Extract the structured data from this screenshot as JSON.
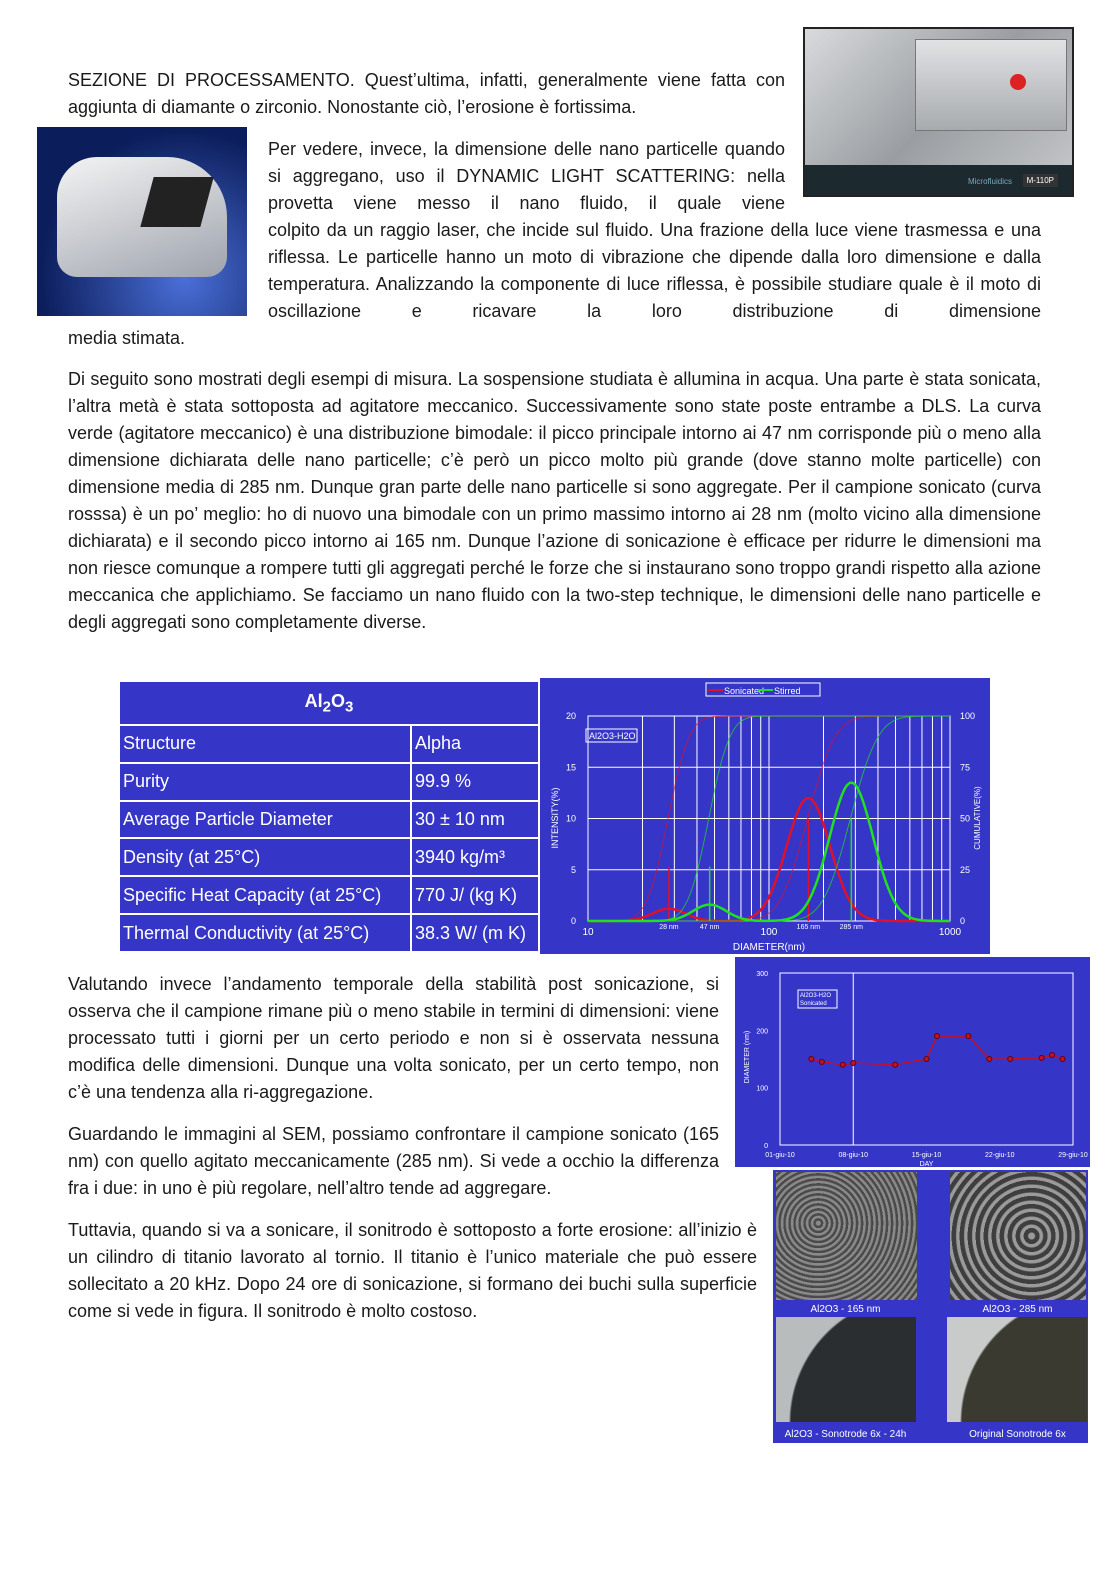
{
  "paragraphs": {
    "p1": "SEZIONE DI PROCESSAMENTO. Quest’ultima, infatti, generalmente viene fatta con aggiunta di diamante o zirconio. Nonostante ciò, l’erosione è fortissima.",
    "p2a": "Per vedere, invece, la dimensione delle nano particelle quando si aggregano, uso il DYNAMIC LIGHT SCATTERING: nella provetta viene messo il nano fluido, il quale viene",
    "p2b": "colpito da un raggio laser, che incide sul fluido. Una frazione della luce viene trasmessa e una riflessa. Le particelle hanno un moto di vibrazione che dipende dalla loro dimensione e dalla temperatura. Analizzando la componente di luce riflessa, è possibile studiare quale è il moto di oscillazione e ricavare la loro distribuzione di dimensione",
    "p2c": "media stimata.",
    "p3": "Di seguito sono mostrati degli esempi di misura. La sospensione studiata è allumina in acqua. Una parte è stata sonicata, l’altra metà è stata sottoposta ad agitatore meccanico. Successivamente sono state poste entrambe a DLS. La curva verde (agitatore meccanico) è una distribuzione bimodale: il picco principale intorno ai 47 nm corrisponde più o meno alla dimensione dichiarata delle nano particelle; c’è però un picco molto più grande (dove stanno molte particelle) con dimensione media di 285 nm. Dunque gran parte delle nano particelle si sono aggregate. Per il campione sonicato (curva rosssa) è un po’ meglio: ho di nuovo una bimodale con un primo massimo intorno ai 28 nm (molto vicino alla dimensione dichiarata) e il secondo picco intorno ai 165 nm. Dunque l’azione di sonicazione è efficace per ridurre le dimensioni ma non riesce comunque a rompere tutti gli aggregati perché le forze che si instaurano sono troppo grandi rispetto alla azione meccanica che applichiamo. Se facciamo un nano fluido con la two-step technique, le dimensioni delle nano particelle e degli aggregati sono completamente diverse.",
    "p4": "Valutando invece l’andamento temporale della stabilità post sonicazione, si osserva che il campione rimane più o meno stabile in termini di dimensioni: viene processato tutti i giorni per un certo periodo e non si è osservata nessuna modifica delle dimensioni. Dunque una volta sonicato, per un certo tempo, non c’è una tendenza alla ri-aggregazione.",
    "p5": "Guardando le immagini al SEM, possiamo confrontare il campione sonicato (165 nm) con quello agitato meccanicamente (285 nm). Si vede a occhio la differenza fra i due: in uno è più regolare, nell’altro tende ad aggregare.",
    "p6": "Tuttavia, quando si va a sonicare, il sonitrodo è sottoposto a forte erosione: all’inizio è un cilindro di titanio lavorato al tornio. Il titanio è l’unico materiale che può essere sollecitato a 20 kHz. Dopo 24 ore di sonicazione, si formano dei buchi sulla superficie come si vede in figura. Il sonitrodo è molto costoso."
  },
  "machine_photo": {
    "brand": "Microfluidics",
    "model": "M-110P"
  },
  "table": {
    "title": "Al2O3",
    "rows": [
      [
        "Structure",
        "Alpha"
      ],
      [
        "Purity",
        "99.9 %"
      ],
      [
        "Average Particle Diameter",
        "30 ± 10 nm"
      ],
      [
        "Density (at 25°C)",
        "3940 kg/m³"
      ],
      [
        "Specific Heat Capacity (at 25°C)",
        "770 J/ (kg K)"
      ],
      [
        "Thermal Conductivity (at 25°C)",
        "38.3 W/ (m K)"
      ]
    ]
  },
  "chart_data": [
    {
      "type": "line",
      "xscale": "log",
      "xlim": [
        10,
        1000
      ],
      "ylim": [
        0,
        20
      ],
      "y2lim": [
        0,
        100
      ],
      "xlabel": "DIAMETER(nm)",
      "ylabel": "INTENSITY(%)",
      "y2label": "CUMULATIVE(%)",
      "xticks": [
        "10",
        "100",
        "1000"
      ],
      "yticks": [
        "0",
        "5",
        "10",
        "15",
        "20"
      ],
      "y2ticks": [
        "0",
        "25",
        "50",
        "75",
        "100"
      ],
      "annotation": "Al2O3-H2O",
      "legend": "top",
      "grid": true,
      "peak_labels": [
        "28 nm",
        "47 nm",
        "165 nm",
        "285 nm"
      ],
      "series": [
        {
          "name": "Sonicated",
          "color": "#e0102a",
          "peaks": [
            {
              "x": 28,
              "y": 1.2
            },
            {
              "x": 165,
              "y": 12
            }
          ]
        },
        {
          "name": "Stirred",
          "color": "#20e020",
          "peaks": [
            {
              "x": 47,
              "y": 1.6
            },
            {
              "x": 285,
              "y": 13.5
            }
          ]
        }
      ]
    },
    {
      "type": "scatter",
      "xlabel": "DAY",
      "ylabel": "DIAMETER (nm)",
      "ylim": [
        0,
        300
      ],
      "xticks": [
        "01-giu-10",
        "08-giu-10",
        "15-giu-10",
        "22-giu-10",
        "29-giu-10"
      ],
      "yticks": [
        "0",
        "100",
        "200",
        "300"
      ],
      "annotation": [
        "Al2O3-H2O",
        "Sonicated"
      ],
      "points": [
        [
          4,
          150
        ],
        [
          5,
          145
        ],
        [
          7,
          140
        ],
        [
          8,
          143
        ],
        [
          12,
          140
        ],
        [
          15,
          150
        ],
        [
          16,
          190
        ],
        [
          19,
          190
        ],
        [
          21,
          150
        ],
        [
          23,
          150
        ],
        [
          26,
          152
        ],
        [
          27,
          157
        ],
        [
          28,
          150
        ]
      ]
    }
  ],
  "figure_captions": [
    "Al2O3 - 165 nm",
    "Al2O3 - 285 nm",
    "Al2O3 - Sonotrode 6x - 24h",
    "Original Sonotrode 6x"
  ],
  "colors": {
    "figure_bg": "#3535c8"
  }
}
